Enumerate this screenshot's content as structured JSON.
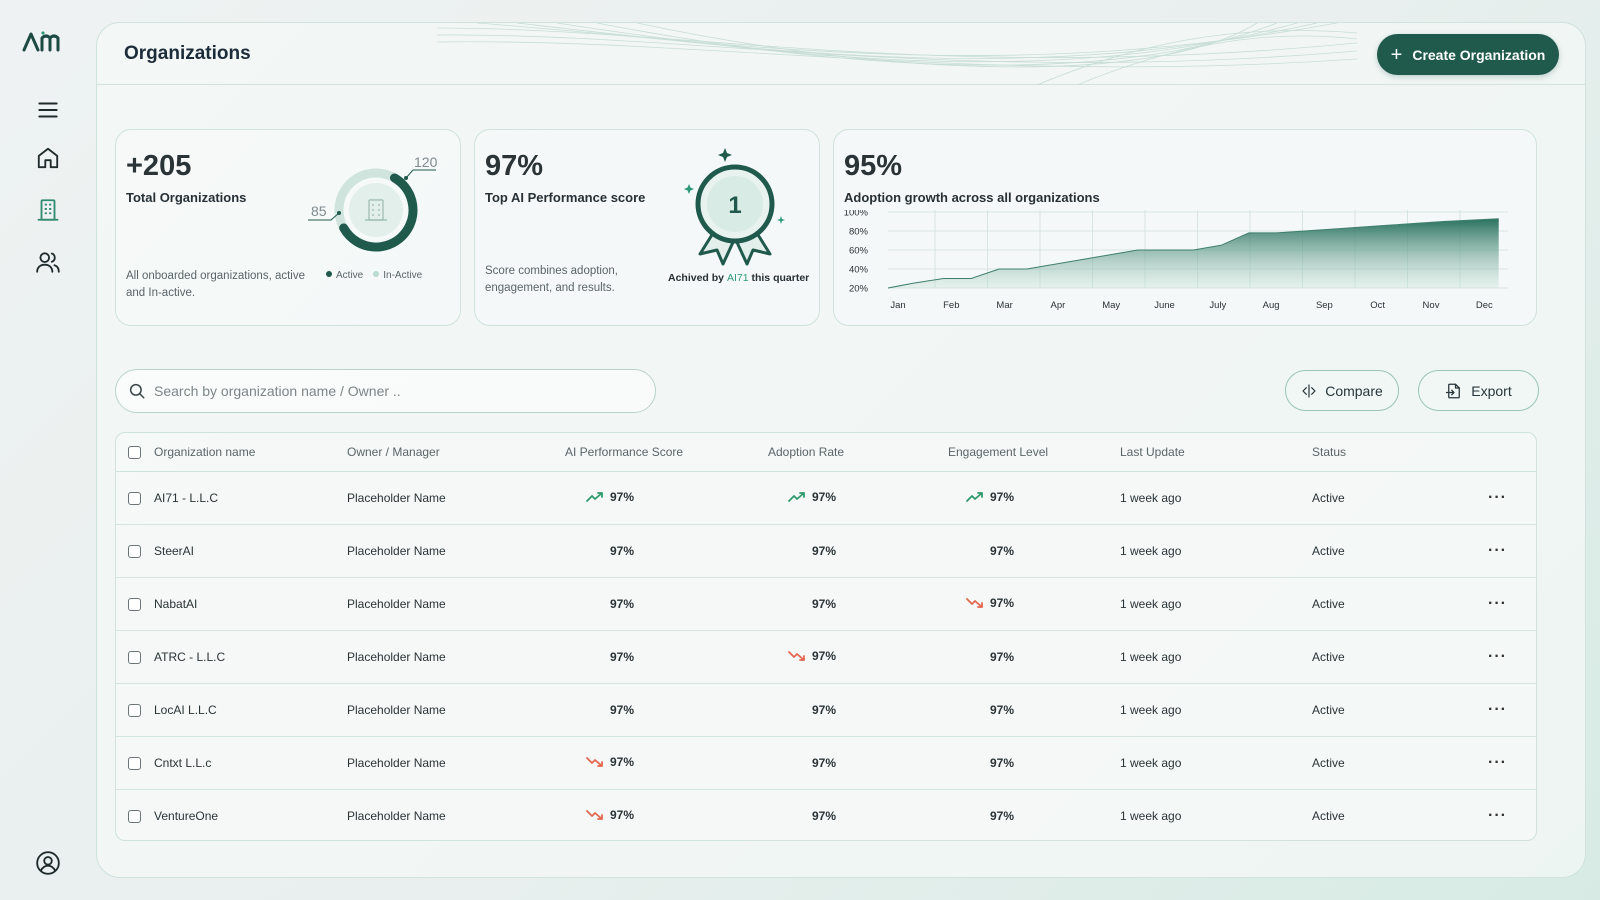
{
  "app": {
    "logo_text": "AM"
  },
  "header": {
    "title": "Organizations",
    "create_label": "Create Organization"
  },
  "cards": {
    "orgs": {
      "big": "+205",
      "label": "Total Organizations",
      "desc": "All onboarded organizations, active and In-active.",
      "active_count": "120",
      "inactive_count": "85",
      "active_fraction": 0.585,
      "legend_active": "Active",
      "legend_inactive": "In-Active",
      "active_color": "#1f5a4c",
      "inactive_color": "#cfe4dd"
    },
    "ai_score": {
      "big": "97%",
      "label": "Top AI Performance score",
      "desc": "Score combines adoption, engagement, and results.",
      "rank": "1",
      "achieved_prefix": "Achived by",
      "achieved_org": "AI71",
      "achieved_suffix": "this quarter"
    },
    "adoption": {
      "big": "95%",
      "label": "Adoption growth across all organizations"
    }
  },
  "chart_data": {
    "type": "area",
    "categories": [
      "Jan",
      "Feb",
      "Mar",
      "Apr",
      "May",
      "June",
      "July",
      "Aug",
      "Sep",
      "Oct",
      "Nov",
      "Dec"
    ],
    "x": [
      0,
      0.45,
      1,
      1.5,
      2,
      2.5,
      3,
      3.5,
      4,
      4.5,
      5,
      5.5,
      6,
      6.5,
      7,
      8,
      9,
      10,
      11
    ],
    "y": [
      20,
      25,
      30,
      30,
      40,
      40,
      45,
      50,
      55,
      60,
      60,
      60,
      65,
      78,
      78,
      82,
      86,
      90,
      93
    ],
    "yticks": [
      "20%",
      "40%",
      "60%",
      "80%",
      "100%"
    ],
    "ylim": [
      20,
      100
    ],
    "grid": true,
    "color": "#1f6a56"
  },
  "search": {
    "placeholder": "Search by organization name / Owner .."
  },
  "toolbar": {
    "compare_label": "Compare",
    "export_label": "Export"
  },
  "table": {
    "headers": [
      "Organization name",
      "Owner / Manager",
      "AI Performance Score",
      "Adoption Rate",
      "Engagement Level",
      "Last Update",
      "Status"
    ],
    "rows": [
      {
        "name": "AI71 - L.L.C",
        "owner": "Placeholder Name",
        "ai": "97%",
        "ai_trend": "up",
        "adoption": "97%",
        "adoption_trend": "up",
        "engagement": "97%",
        "engagement_trend": "up",
        "updated": "1 week ago",
        "status": "Active"
      },
      {
        "name": "SteerAI",
        "owner": "Placeholder Name",
        "ai": "97%",
        "ai_trend": "none",
        "adoption": "97%",
        "adoption_trend": "none",
        "engagement": "97%",
        "engagement_trend": "none",
        "updated": "1 week ago",
        "status": "Active"
      },
      {
        "name": "NabatAI",
        "owner": "Placeholder Name",
        "ai": "97%",
        "ai_trend": "none",
        "adoption": "97%",
        "adoption_trend": "none",
        "engagement": "97%",
        "engagement_trend": "down",
        "updated": "1 week ago",
        "status": "Active"
      },
      {
        "name": "ATRC - L.L.C",
        "owner": "Placeholder Name",
        "ai": "97%",
        "ai_trend": "none",
        "adoption": "97%",
        "adoption_trend": "down",
        "engagement": "97%",
        "engagement_trend": "none",
        "updated": "1 week ago",
        "status": "Active"
      },
      {
        "name": "LocAI L.L.C",
        "owner": "Placeholder Name",
        "ai": "97%",
        "ai_trend": "none",
        "adoption": "97%",
        "adoption_trend": "none",
        "engagement": "97%",
        "engagement_trend": "none",
        "updated": "1 week ago",
        "status": "Active"
      },
      {
        "name": "Cntxt L.L.c",
        "owner": "Placeholder Name",
        "ai": "97%",
        "ai_trend": "down",
        "adoption": "97%",
        "adoption_trend": "none",
        "engagement": "97%",
        "engagement_trend": "none",
        "updated": "1 week ago",
        "status": "Active"
      },
      {
        "name": "VentureOne",
        "owner": "Placeholder Name",
        "ai": "97%",
        "ai_trend": "down",
        "adoption": "97%",
        "adoption_trend": "none",
        "engagement": "97%",
        "engagement_trend": "none",
        "updated": "1 week ago",
        "status": "Active"
      }
    ],
    "more_label": "···"
  },
  "colors": {
    "accent": "#1f5a4c",
    "up": "#2f9a6e",
    "down": "#e4674f"
  },
  "icons": {
    "sidebar": [
      "menu-icon",
      "home-icon",
      "building-icon",
      "users-icon",
      "profile-icon"
    ]
  }
}
